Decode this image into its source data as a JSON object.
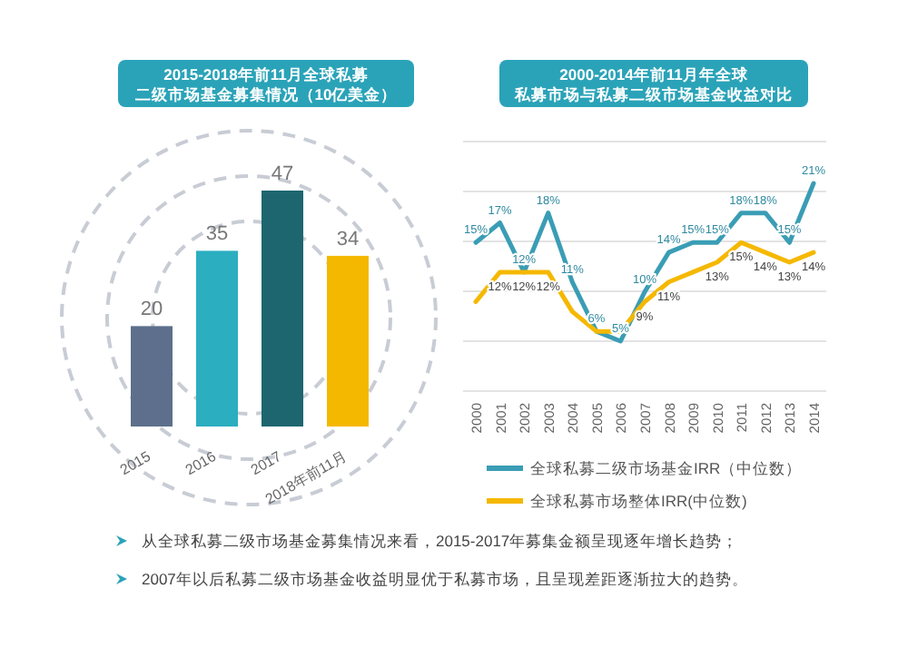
{
  "chart_data": [
    {
      "type": "bar",
      "title": "2015-2018年前11月全球私募二级市场基金募集情况（10亿美金）",
      "categories": [
        "2015",
        "2016",
        "2017",
        "2018年前11月"
      ],
      "values": [
        20,
        35,
        47,
        34
      ],
      "colors": [
        "#5d6f8c",
        "#2aaec0",
        "#1d6670",
        "#f5b800"
      ],
      "data_labels": true,
      "annotations": [
        "从全球私募二级市场基金募集情况来看，2015-2017年募集金额呈现逐年增长趋势；"
      ]
    },
    {
      "type": "line",
      "title": "2000-2014年前11月年全球私募市场与私募二级市场基金收益对比",
      "categories": [
        "2000",
        "2001",
        "2002",
        "2003",
        "2004",
        "2005",
        "2006",
        "2007",
        "2008",
        "2009",
        "2010",
        "2011",
        "2012",
        "2013",
        "2014"
      ],
      "series": [
        {
          "name": "全球私募二级市场基金IRR（中位数）",
          "color": "#3a9db5",
          "values": [
            15,
            17,
            12,
            18,
            11,
            6,
            5,
            10,
            14,
            15,
            15,
            18,
            18,
            15,
            21
          ],
          "value_labels": [
            "15%",
            "17%",
            "12%",
            "18%",
            "11%",
            "6%",
            "5%",
            "10%",
            "14%",
            "15%",
            "15%",
            "18%",
            "18%",
            "15%",
            "21%"
          ]
        },
        {
          "name": "全球私募市场整体IRR(中位数)",
          "color": "#f5b800",
          "values": [
            9,
            12,
            12,
            12,
            8,
            6,
            6,
            9,
            11,
            12,
            13,
            15,
            14,
            13,
            14
          ],
          "value_labels": [
            null,
            "12%",
            "12%",
            "12%",
            null,
            null,
            null,
            "9%",
            "11%",
            null,
            "13%",
            "15%",
            "14%",
            "13%",
            "14%"
          ]
        }
      ],
      "grid": "y",
      "legend": "bottom",
      "marker": "none",
      "line_style": "solid",
      "annotations": [
        "2007年以后私募二级市场基金收益明显优于私募市场，且呈现差距逐渐拉大的趋势。"
      ]
    }
  ]
}
